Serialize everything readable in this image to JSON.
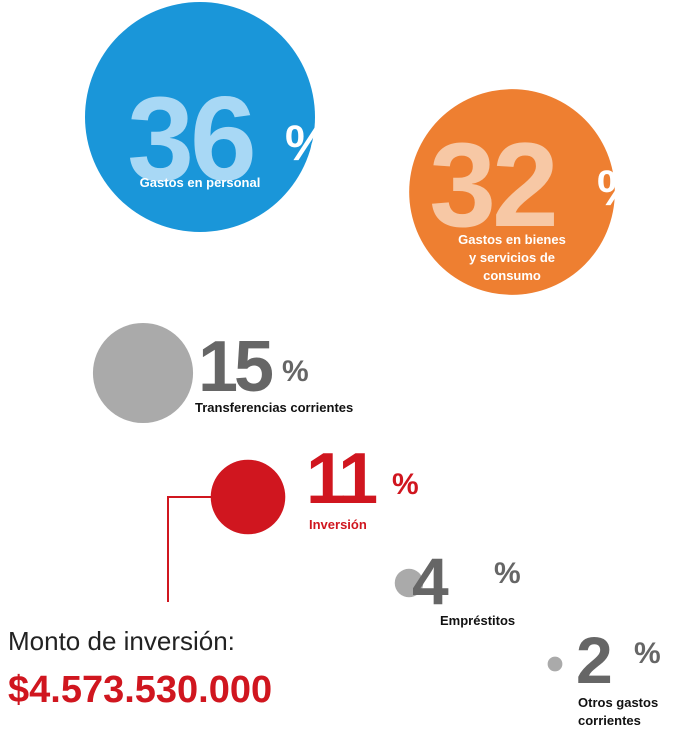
{
  "chart_data": {
    "type": "bubble",
    "categories": [
      "Gastos en personal",
      "Gastos en bienes\ny servicios de\nconsumo",
      "Transferencias corrientes",
      "Inversión",
      "Empréstitos",
      "Otros gastos\ncorrientes"
    ],
    "values": [
      36,
      32,
      15,
      11,
      4,
      2
    ],
    "unit": "%",
    "colors": [
      "#1a96d9",
      "#ee7f31",
      "#aaaaaa",
      "#d0161f",
      "#aaaaaa",
      "#aaaaaa"
    ],
    "annotation": {
      "text": "Monto de inversión:",
      "amount": "$4.573.530.000"
    }
  }
}
